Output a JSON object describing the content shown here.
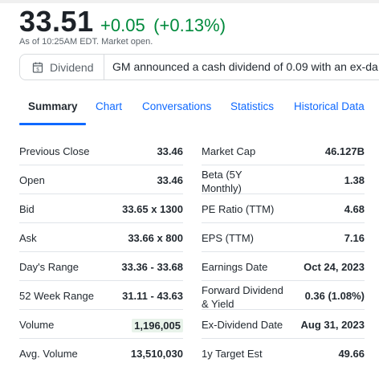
{
  "quote": {
    "price": "33.51",
    "change": "+0.05",
    "change_pct": "(+0.13%)",
    "as_of": "As of 10:25AM EDT. Market open.",
    "up_color": "#008a3c"
  },
  "event": {
    "icon": "calendar-icon",
    "tag": "Dividend",
    "message": "GM announced a cash dividend of 0.09 with an ex-da"
  },
  "tabs": [
    {
      "label": "Summary",
      "active": true
    },
    {
      "label": "Chart",
      "active": false
    },
    {
      "label": "Conversations",
      "active": false
    },
    {
      "label": "Statistics",
      "active": false
    },
    {
      "label": "Historical Data",
      "active": false
    }
  ],
  "left_stats": [
    {
      "label": "Previous Close",
      "value": "33.46"
    },
    {
      "label": "Open",
      "value": "33.46"
    },
    {
      "label": "Bid",
      "value": "33.65 x 1300"
    },
    {
      "label": "Ask",
      "value": "33.66 x 800"
    },
    {
      "label": "Day's Range",
      "value": "33.36 - 33.68"
    },
    {
      "label": "52 Week Range",
      "value": "31.11 - 43.63"
    },
    {
      "label": "Volume",
      "value": "1,196,005"
    },
    {
      "label": "Avg. Volume",
      "value": "13,510,030"
    }
  ],
  "right_stats": [
    {
      "label": "Market Cap",
      "value": "46.127B"
    },
    {
      "label": "Beta (5Y Monthly)",
      "value": "1.38"
    },
    {
      "label": "PE Ratio (TTM)",
      "value": "4.68"
    },
    {
      "label": "EPS (TTM)",
      "value": "7.16"
    },
    {
      "label": "Earnings Date",
      "value": "Oct 24, 2023"
    },
    {
      "label": "Forward Dividend & Yield",
      "value": "0.36 (1.08%)"
    },
    {
      "label": "Ex-Dividend Date",
      "value": "Aug 31, 2023"
    },
    {
      "label": "1y Target Est",
      "value": "49.66"
    }
  ]
}
